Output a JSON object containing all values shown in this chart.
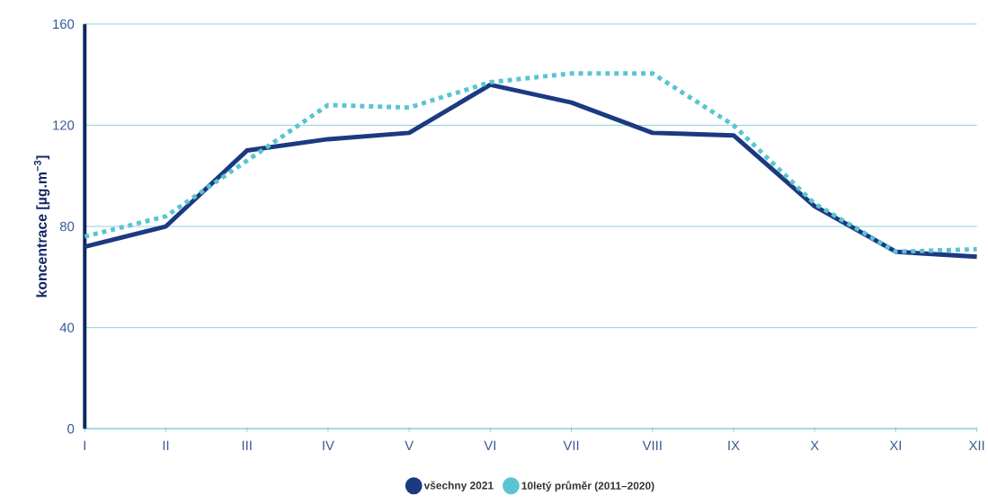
{
  "chart_data": {
    "type": "line",
    "ylabel": "koncentrace [µg.m$^{−3}$]",
    "categories": [
      "I",
      "II",
      "III",
      "IV",
      "V",
      "VI",
      "VII",
      "VIII",
      "IX",
      "X",
      "XI",
      "XII"
    ],
    "series": [
      {
        "name": "všechny 2021",
        "color": "#1b3a82",
        "line_style": "solid",
        "values": [
          72,
          80,
          110,
          114.5,
          117,
          136,
          129,
          117,
          116,
          88,
          70,
          68
        ]
      },
      {
        "name": "10letý průměr (2011–2020)",
        "color": "#5bc4d1",
        "line_style": "dotted",
        "values": [
          76,
          84,
          106,
          128,
          127,
          137,
          140.5,
          140.5,
          120,
          89,
          70,
          71
        ]
      }
    ],
    "ylim": [
      0,
      160
    ],
    "yticks": [
      0,
      40,
      80,
      120,
      160
    ],
    "grid": "y",
    "legend": "bottom",
    "marker": "none"
  }
}
